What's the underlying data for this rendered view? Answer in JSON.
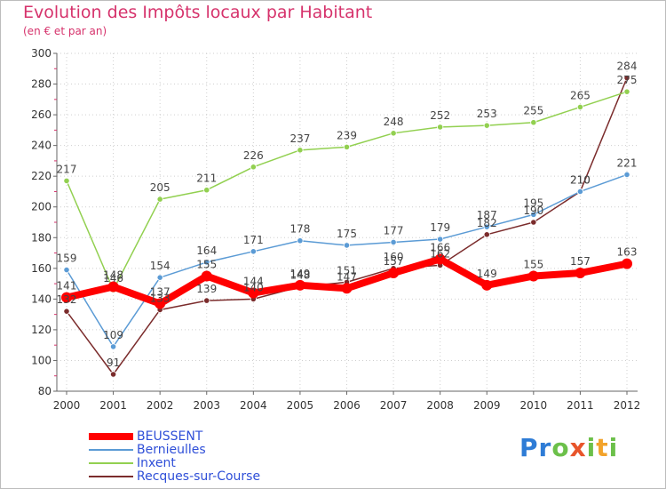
{
  "title": "Evolution des Impôts locaux par Habitant",
  "subtitle": "(en € et par an)",
  "logo": [
    "P",
    "r",
    "o",
    "x",
    "i",
    "t",
    "i"
  ],
  "logo_colors": [
    "#2e7cd6",
    "#2e7cd6",
    "#6cc04a",
    "#e8552b",
    "#6cc04a",
    "#f2a32b",
    "#6cc04a"
  ],
  "chart_data": {
    "type": "line",
    "title": "Evolution des Impôts locaux par Habitant",
    "subtitle": "(en € et par an)",
    "xlabel": "",
    "ylabel": "",
    "x": [
      "2000",
      "2001",
      "2002",
      "2003",
      "2004",
      "2005",
      "2006",
      "2007",
      "2008",
      "2009",
      "2010",
      "2011",
      "2012"
    ],
    "ylim": [
      80,
      300
    ],
    "yticks": [
      80,
      100,
      120,
      140,
      160,
      180,
      200,
      220,
      240,
      260,
      280,
      300
    ],
    "grid": true,
    "legend": "bottom-left",
    "series": [
      {
        "name": "BEUSSENT",
        "color": "#ff0000",
        "values": [
          141,
          148,
          137,
          155,
          144,
          149,
          147,
          157,
          166,
          149,
          155,
          157,
          163
        ]
      },
      {
        "name": "Bernieulles",
        "color": "#5b9bd5",
        "values": [
          159,
          109,
          154,
          164,
          171,
          178,
          175,
          177,
          179,
          187,
          195,
          210,
          221
        ]
      },
      {
        "name": "Inxent",
        "color": "#92d050",
        "values": [
          217,
          146,
          205,
          211,
          226,
          237,
          239,
          248,
          252,
          253,
          255,
          265,
          275
        ]
      },
      {
        "name": "Recques-sur-Course",
        "color": "#7b2c2c",
        "values": [
          132,
          91,
          133,
          139,
          140,
          148,
          151,
          160,
          162,
          182,
          190,
          210,
          284
        ]
      }
    ]
  }
}
